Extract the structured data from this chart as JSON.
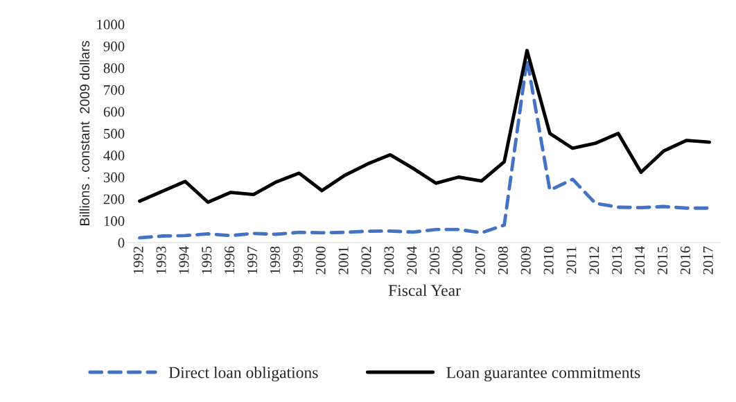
{
  "chart_data": {
    "type": "line",
    "xlabel": "Fiscal Year",
    "ylabel": "Billions . constant  2009 dollars",
    "categories": [
      "1992",
      "1993",
      "1994",
      "1995",
      "1996",
      "1997",
      "1998",
      "1999",
      "2000",
      "2001",
      "2002",
      "2003",
      "2004",
      "2005",
      "2006",
      "2007",
      "2008",
      "2009",
      "2010",
      "2011",
      "2012",
      "2013",
      "2014",
      "2015",
      "2016",
      "2017"
    ],
    "series": [
      {
        "name": "Direct loan obligations",
        "color": "#4472c4",
        "line_style": "dashed",
        "values": [
          22,
          30,
          32,
          40,
          32,
          42,
          38,
          47,
          45,
          47,
          52,
          53,
          48,
          60,
          60,
          45,
          80,
          840,
          240,
          290,
          180,
          162,
          160,
          165,
          158,
          158
        ]
      },
      {
        "name": "Loan guarantee commitments",
        "color": "#000000",
        "line_style": "solid",
        "values": [
          190,
          235,
          280,
          185,
          230,
          220,
          278,
          318,
          238,
          308,
          360,
          402,
          340,
          272,
          300,
          282,
          370,
          880,
          500,
          432,
          455,
          500,
          322,
          420,
          468,
          460
        ]
      }
    ],
    "ylim": [
      0,
      1000
    ],
    "yticks": [
      0,
      100,
      200,
      300,
      400,
      500,
      600,
      700,
      800,
      900,
      1000
    ],
    "grid": false,
    "legend": "bottom",
    "marker": "none"
  }
}
